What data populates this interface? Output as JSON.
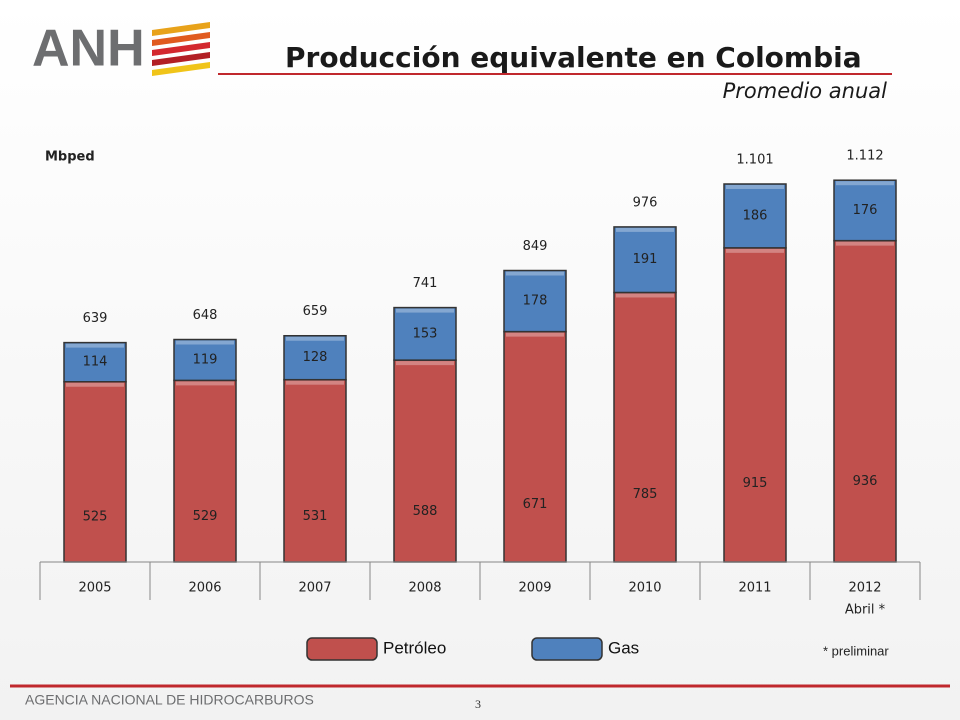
{
  "header": {
    "logo": "ANH",
    "title": "Producción equivalente en Colombia",
    "subtitle": "Promedio anual"
  },
  "chart_data": {
    "type": "stacked_bar",
    "y_unit": "Mbped",
    "categories": [
      "2005",
      "2006",
      "2007",
      "2008",
      "2009",
      "2010",
      "2011",
      "2012"
    ],
    "category_notes": [
      null,
      null,
      null,
      null,
      null,
      null,
      null,
      "Abril *"
    ],
    "series": [
      {
        "name": "Petróleo",
        "color": "#c0504d",
        "values": [
          525,
          529,
          531,
          588,
          671,
          785,
          915,
          936
        ]
      },
      {
        "name": "Gas",
        "color": "#4f81bd",
        "values": [
          114,
          119,
          128,
          153,
          178,
          191,
          186,
          176
        ]
      }
    ],
    "totals": [
      639,
      648,
      659,
      741,
      849,
      976,
      1101,
      1112
    ],
    "totals_value_labels": [
      "639",
      "648",
      "659",
      "741",
      "849",
      "976",
      "1.101",
      "1.112"
    ],
    "ylim": [
      0,
      1200
    ],
    "legend": "bottom",
    "note": "* preliminar"
  },
  "footer": {
    "organization": "AGENCIA NACIONAL DE HIDROCARBUROS",
    "page": "3"
  }
}
